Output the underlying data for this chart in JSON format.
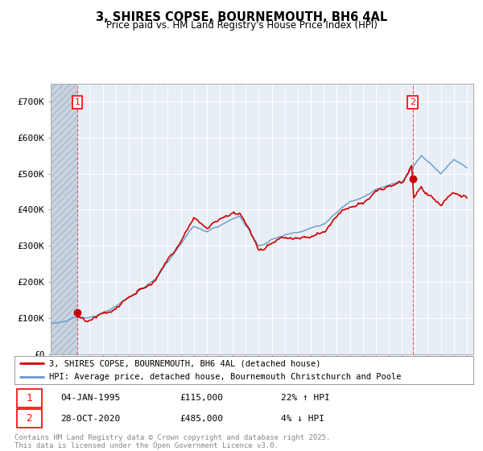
{
  "title_line1": "3, SHIRES COPSE, BOURNEMOUTH, BH6 4AL",
  "title_line2": "Price paid vs. HM Land Registry's House Price Index (HPI)",
  "ylim": [
    0,
    750000
  ],
  "yticks": [
    0,
    100000,
    200000,
    300000,
    400000,
    500000,
    600000,
    700000
  ],
  "ytick_labels": [
    "£0",
    "£100K",
    "£200K",
    "£300K",
    "£400K",
    "£500K",
    "£600K",
    "£700K"
  ],
  "price_paid_color": "#cc0000",
  "hpi_line_color": "#6699cc",
  "plot_bg_color": "#e8eef5",
  "hatch_color": "#c8d4e0",
  "sale1_x": 1995.04,
  "sale1_price": 115000,
  "sale1_date": "04-JAN-1995",
  "sale1_label": "22% ↑ HPI",
  "sale2_x": 2020.83,
  "sale2_price": 485000,
  "sale2_date": "28-OCT-2020",
  "sale2_label": "4% ↓ HPI",
  "legend_line1": "3, SHIRES COPSE, BOURNEMOUTH, BH6 4AL (detached house)",
  "legend_line2": "HPI: Average price, detached house, Bournemouth Christchurch and Poole",
  "footer": "Contains HM Land Registry data © Crown copyright and database right 2025.\nThis data is licensed under the Open Government Licence v3.0.",
  "xlim_start": 1993,
  "xlim_end": 2025.5
}
